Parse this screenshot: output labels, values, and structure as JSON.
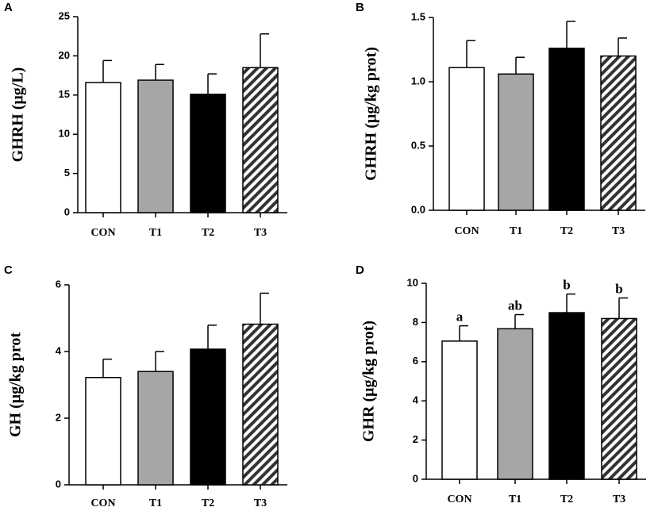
{
  "chart_data": [
    {
      "panel": "A",
      "type": "bar",
      "ylabel": "GHRH (μg/L)",
      "categories": [
        "CON",
        "T1",
        "T2",
        "T3"
      ],
      "values": [
        16.6,
        16.9,
        15.1,
        18.5
      ],
      "errors": [
        2.8,
        2.0,
        2.6,
        4.3
      ],
      "ylim": [
        0,
        25
      ],
      "yticks": [
        "0",
        "5",
        "10",
        "15",
        "20",
        "25"
      ],
      "sig_labels": [
        "",
        "",
        "",
        ""
      ]
    },
    {
      "panel": "B",
      "type": "bar",
      "ylabel": "GHRH (μg/kg prot)",
      "categories": [
        "CON",
        "T1",
        "T2",
        "T3"
      ],
      "values": [
        1.11,
        1.06,
        1.26,
        1.2
      ],
      "errors": [
        0.21,
        0.13,
        0.21,
        0.14
      ],
      "ylim": [
        0,
        1.5
      ],
      "yticks": [
        "0.0",
        "0.5",
        "1.0",
        "1.5"
      ],
      "sig_labels": [
        "",
        "",
        "",
        ""
      ]
    },
    {
      "panel": "C",
      "type": "bar",
      "ylabel": "GH (μg/kg prot",
      "categories": [
        "CON",
        "T1",
        "T2",
        "T3"
      ],
      "values": [
        3.22,
        3.4,
        4.07,
        4.82
      ],
      "errors": [
        0.55,
        0.6,
        0.72,
        0.93
      ],
      "ylim": [
        0,
        6
      ],
      "yticks": [
        "0",
        "2",
        "4",
        "6"
      ],
      "sig_labels": [
        "",
        "",
        "",
        ""
      ]
    },
    {
      "panel": "D",
      "type": "bar",
      "ylabel": "GHR (μg/kg prot)",
      "categories": [
        "CON",
        "T1",
        "T2",
        "T3"
      ],
      "values": [
        7.05,
        7.68,
        8.5,
        8.2
      ],
      "errors": [
        0.78,
        0.72,
        0.95,
        1.05
      ],
      "ylim": [
        0,
        10
      ],
      "yticks": [
        "0",
        "2",
        "4",
        "6",
        "8",
        "10"
      ],
      "sig_labels": [
        "a",
        "ab",
        "b",
        "b"
      ]
    }
  ],
  "colors": {
    "CON": "#ffffff",
    "T1": "#a6a6a6",
    "T2": "#000000",
    "T3": "hatch"
  }
}
